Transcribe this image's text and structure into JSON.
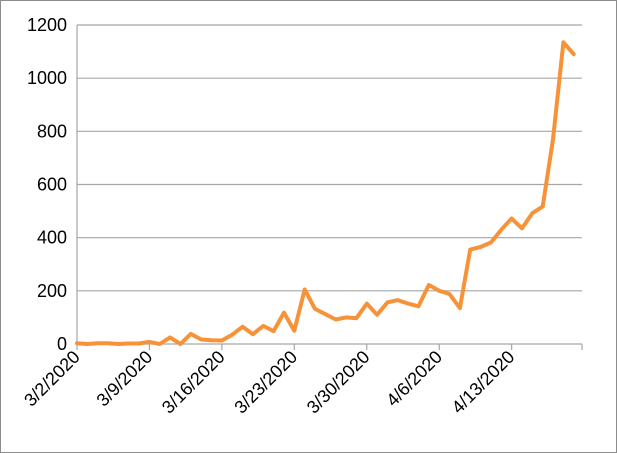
{
  "chart_data": {
    "type": "line",
    "title": "",
    "xlabel": "",
    "ylabel": "",
    "ylim": [
      0,
      1200
    ],
    "yticks": [
      0,
      200,
      400,
      600,
      800,
      1000,
      1200
    ],
    "grid": "horizontal",
    "legend": "none",
    "x_start": "3/2/2020",
    "x_tick_labels": [
      "3/2/2020",
      "3/9/2020",
      "3/16/2020",
      "3/23/2020",
      "3/30/2020",
      "4/6/2020",
      "4/13/2020"
    ],
    "series": [
      {
        "color": "#F79239",
        "x": [
          "3/2/2020",
          "3/3/2020",
          "3/4/2020",
          "3/5/2020",
          "3/6/2020",
          "3/7/2020",
          "3/8/2020",
          "3/9/2020",
          "3/10/2020",
          "3/11/2020",
          "3/12/2020",
          "3/13/2020",
          "3/14/2020",
          "3/15/2020",
          "3/16/2020",
          "3/17/2020",
          "3/18/2020",
          "3/19/2020",
          "3/20/2020",
          "3/21/2020",
          "3/22/2020",
          "3/23/2020",
          "3/24/2020",
          "3/25/2020",
          "3/26/2020",
          "3/27/2020",
          "3/28/2020",
          "3/29/2020",
          "3/30/2020",
          "3/31/2020",
          "4/1/2020",
          "4/2/2020",
          "4/3/2020",
          "4/4/2020",
          "4/5/2020",
          "4/6/2020",
          "4/7/2020",
          "4/8/2020",
          "4/9/2020",
          "4/10/2020",
          "4/11/2020",
          "4/12/2020",
          "4/13/2020",
          "4/14/2020",
          "4/15/2020",
          "4/16/2020",
          "4/17/2020",
          "4/18/2020",
          "4/19/2020"
        ],
        "values": [
          3,
          0,
          3,
          3,
          0,
          2,
          2,
          8,
          0,
          25,
          0,
          38,
          17,
          14,
          13,
          35,
          65,
          37,
          68,
          48,
          118,
          50,
          205,
          132,
          112,
          92,
          100,
          97,
          152,
          110,
          157,
          165,
          152,
          142,
          222,
          200,
          188,
          135,
          355,
          365,
          382,
          430,
          472,
          435,
          492,
          517,
          770,
          1135,
          1090
        ]
      }
    ]
  }
}
